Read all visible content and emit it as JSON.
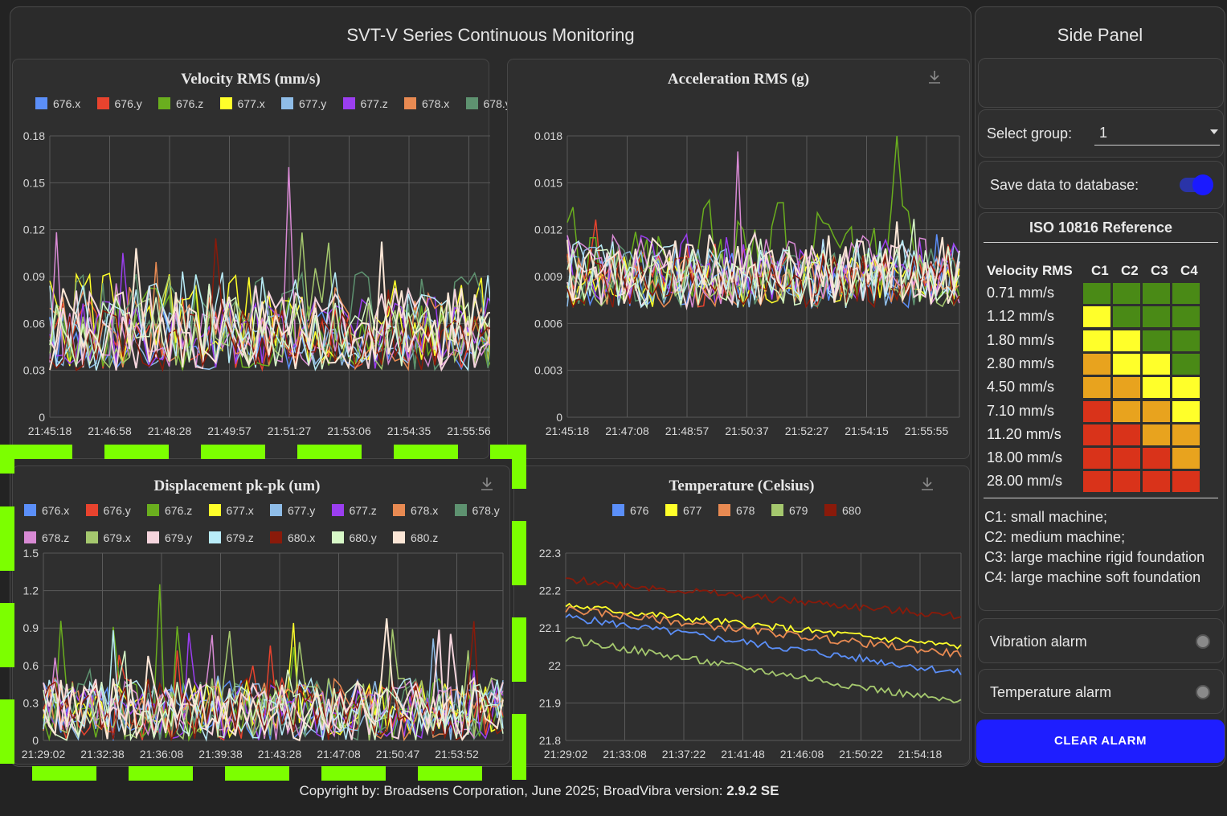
{
  "main": {
    "title": "SVT-V Series Continuous Monitoring"
  },
  "charts": {
    "velocity": {
      "title": "Velocity RMS (mm/s)",
      "yticks": [
        "0.18",
        "0.15",
        "0.12",
        "0.09",
        "0.06",
        "0.03",
        "0"
      ],
      "xticks": [
        "21:45:18",
        "21:46:58",
        "21:48:28",
        "21:49:57",
        "21:51:27",
        "21:53:06",
        "21:54:35",
        "21:55:56"
      ]
    },
    "acceleration": {
      "title": "Acceleration RMS (g)",
      "yticks": [
        "0.018",
        "0.015",
        "0.012",
        "0.009",
        "0.006",
        "0.003",
        "0"
      ],
      "xticks": [
        "21:45:18",
        "21:47:08",
        "21:48:57",
        "21:50:37",
        "21:52:27",
        "21:54:15",
        "21:55:55"
      ]
    },
    "displacement": {
      "title": "Displacement pk-pk (um)",
      "yticks": [
        "1.5",
        "1.2",
        "0.9",
        "0.6",
        "0.3",
        "0"
      ],
      "xticks": [
        "21:29:02",
        "21:32:38",
        "21:36:08",
        "21:39:38",
        "21:43:28",
        "21:47:08",
        "21:50:47",
        "21:53:52"
      ]
    },
    "temperature": {
      "title": "Temperature (Celsius)",
      "yticks": [
        "22.3",
        "22.2",
        "22.1",
        "22",
        "21.9",
        "21.8"
      ],
      "xticks": [
        "21:29:02",
        "21:33:08",
        "21:37:22",
        "21:41:48",
        "21:46:08",
        "21:50:22",
        "21:54:18"
      ]
    }
  },
  "legend": {
    "channels": [
      {
        "name": "676.x",
        "color": "#5b8ff9"
      },
      {
        "name": "676.y",
        "color": "#e8432e"
      },
      {
        "name": "676.z",
        "color": "#6aae1e"
      },
      {
        "name": "677.x",
        "color": "#ffff2a"
      },
      {
        "name": "677.y",
        "color": "#8fbde8"
      },
      {
        "name": "677.z",
        "color": "#9b3ef0"
      },
      {
        "name": "678.x",
        "color": "#e88a52"
      },
      {
        "name": "678.y",
        "color": "#5e9270"
      },
      {
        "name": "678.z",
        "color": "#d88ad4"
      },
      {
        "name": "679.x",
        "color": "#a5c86e"
      },
      {
        "name": "679.y",
        "color": "#f5d5dd"
      },
      {
        "name": "679.z",
        "color": "#b9ecf8"
      },
      {
        "name": "680.x",
        "color": "#8a1a0a"
      },
      {
        "name": "680.y",
        "color": "#d8f8c8"
      },
      {
        "name": "680.z",
        "color": "#fbe6d6"
      }
    ],
    "sensors": [
      {
        "name": "676",
        "color": "#5b8ff9"
      },
      {
        "name": "677",
        "color": "#ffff2a"
      },
      {
        "name": "678",
        "color": "#e88a52"
      },
      {
        "name": "679",
        "color": "#a5c86e"
      },
      {
        "name": "680",
        "color": "#8a1a0a"
      }
    ]
  },
  "chart_data": [
    {
      "type": "line",
      "title": "Velocity RMS (mm/s)",
      "ylim": [
        0,
        0.18
      ],
      "x_range": [
        "21:45:18",
        "21:55:56"
      ],
      "typical_range": [
        0.03,
        0.1
      ],
      "peak": {
        "series": "678.z",
        "value": 0.16
      }
    },
    {
      "type": "line",
      "title": "Acceleration RMS (g)",
      "ylim": [
        0,
        0.018
      ],
      "x_range": [
        "21:45:18",
        "21:55:55"
      ],
      "typical_range": [
        0.007,
        0.012
      ],
      "peak": {
        "series": "676.z",
        "value": 0.018
      }
    },
    {
      "type": "line",
      "title": "Displacement pk-pk (um)",
      "ylim": [
        0,
        1.5
      ],
      "x_range": [
        "21:29:02",
        "21:53:52"
      ],
      "typical_range": [
        0,
        0.5
      ],
      "peak": {
        "series": "676.z",
        "value": 1.25
      }
    },
    {
      "type": "line",
      "title": "Temperature (Celsius)",
      "ylim": [
        21.8,
        22.3
      ],
      "x_range": [
        "21:29:02",
        "21:54:18"
      ],
      "series": [
        {
          "name": "676",
          "start": 22.13,
          "end": 21.98
        },
        {
          "name": "677",
          "start": 22.16,
          "end": 22.05
        },
        {
          "name": "678",
          "start": 22.15,
          "end": 22.03
        },
        {
          "name": "679",
          "start": 22.07,
          "end": 21.9
        },
        {
          "name": "680",
          "start": 22.23,
          "end": 22.13
        }
      ]
    }
  ],
  "side": {
    "title": "Side Panel",
    "group_label": "Select group:",
    "group_value": "1",
    "save_label": "Save data to database:",
    "save_enabled": true,
    "iso": {
      "title": "ISO 10816 Reference",
      "col_header": "Velocity RMS",
      "classes": [
        "C1",
        "C2",
        "C3",
        "C4"
      ],
      "rows": [
        {
          "label": "0.71 mm/s",
          "zones": [
            "A",
            "A",
            "A",
            "A"
          ]
        },
        {
          "label": "1.12 mm/s",
          "zones": [
            "B",
            "A",
            "A",
            "A"
          ]
        },
        {
          "label": "1.80 mm/s",
          "zones": [
            "B",
            "B",
            "A",
            "A"
          ]
        },
        {
          "label": "2.80 mm/s",
          "zones": [
            "C",
            "B",
            "B",
            "A"
          ]
        },
        {
          "label": "4.50 mm/s",
          "zones": [
            "C",
            "C",
            "B",
            "B"
          ]
        },
        {
          "label": "7.10 mm/s",
          "zones": [
            "D",
            "C",
            "C",
            "B"
          ]
        },
        {
          "label": "11.20 mm/s",
          "zones": [
            "D",
            "D",
            "C",
            "C"
          ]
        },
        {
          "label": "18.00 mm/s",
          "zones": [
            "D",
            "D",
            "D",
            "C"
          ]
        },
        {
          "label": "28.00 mm/s",
          "zones": [
            "D",
            "D",
            "D",
            "D"
          ]
        }
      ],
      "zone_colors": {
        "A": "#4a8a16",
        "B": "#ffff2a",
        "C": "#e8a31e",
        "D": "#d9331a"
      },
      "notes": [
        "C1: small machine;",
        "C2: medium machine;",
        "C3: large machine rigid foundation",
        "C4: large machine soft foundation"
      ]
    },
    "vibration_alarm": "Vibration alarm",
    "temperature_alarm": "Temperature alarm",
    "clear_alarm": "CLEAR ALARM"
  },
  "footer": {
    "text": "Copyright by: Broadsens Corporation, June 2025; BroadVibra version: ",
    "version": "2.9.2 SE"
  }
}
